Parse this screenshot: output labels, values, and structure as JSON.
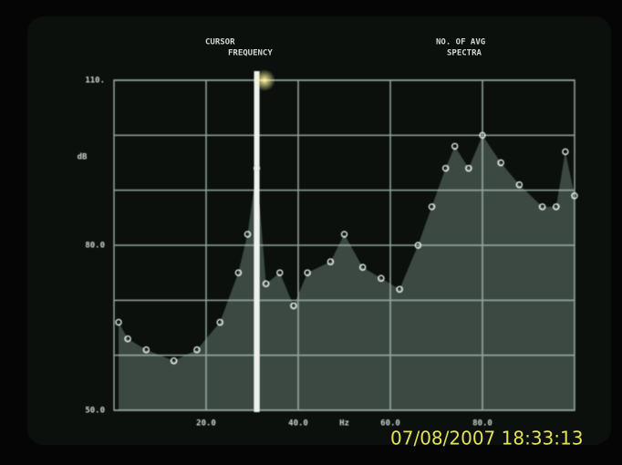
{
  "header": {
    "cursor": "CURSOR",
    "frequency": "FREQUENCY",
    "averages": "NO. OF AVG",
    "spectra": "SPECTRA"
  },
  "chart_data": {
    "type": "scatter",
    "y_label": "dB",
    "x_unit": "Hz",
    "x": [
      1,
      3,
      7,
      13,
      18,
      23,
      27,
      29,
      31,
      33,
      36,
      39,
      42,
      47,
      50,
      54,
      58,
      62,
      66,
      69,
      72,
      74,
      77,
      80,
      84,
      88,
      93,
      96,
      98,
      100
    ],
    "series": [
      {
        "color": "#dfe8e2",
        "values": [
          66,
          63,
          61,
          59,
          61,
          66,
          75,
          82,
          94,
          73,
          75,
          69,
          75,
          77,
          82,
          76,
          74,
          72,
          80,
          87,
          94,
          98,
          94,
          100,
          95,
          91,
          87,
          87,
          97,
          89
        ]
      }
    ],
    "cursor_x": 31,
    "xlim": [
      0,
      100
    ],
    "ylim": [
      50,
      110
    ],
    "xticks": [
      {
        "value": 20,
        "label": "20.0"
      },
      {
        "value": 40,
        "label": "40.0"
      },
      {
        "value": 60,
        "label": "60.0"
      },
      {
        "value": 80,
        "label": "80.0"
      }
    ],
    "yticks": [
      {
        "value": 50,
        "label": "50.0"
      },
      {
        "value": 80,
        "label": "80.0"
      },
      {
        "value": 110,
        "label": "110."
      }
    ],
    "grid": true
  },
  "timestamp": "07/08/2007 18:33:13"
}
